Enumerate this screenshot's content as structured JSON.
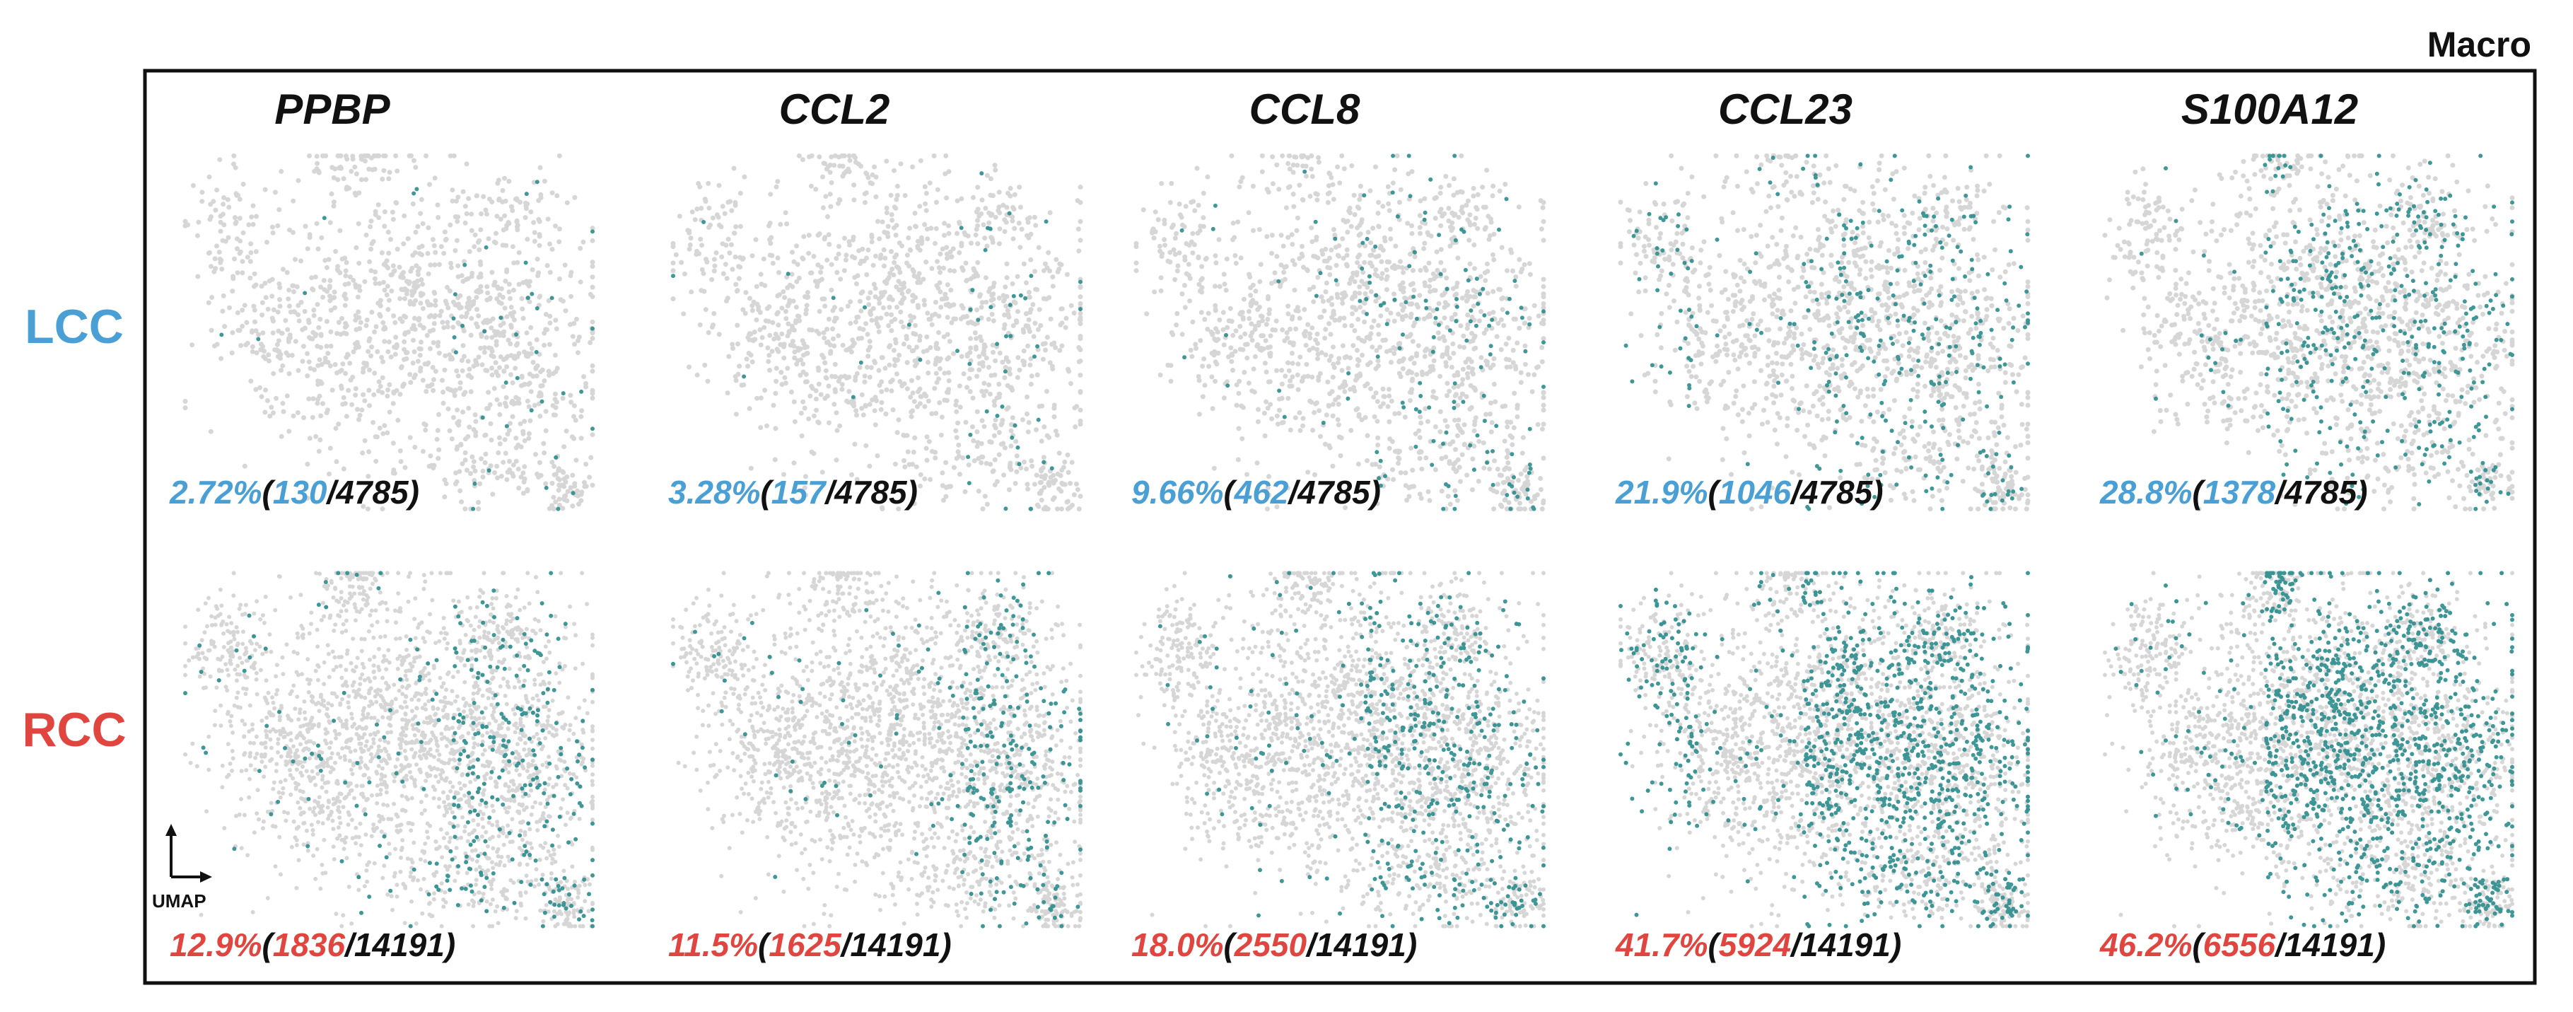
{
  "figure": {
    "corner_label": "Macro",
    "axis_key_label": "UMAP"
  },
  "colors": {
    "lcc": "#4a9fd4",
    "rcc": "#e0463f",
    "background_cell": "#d6d6d6",
    "expressing_cell": "#2a8c8c",
    "text": "#111111"
  },
  "chart_data": {
    "type": "scatter",
    "subtype": "UMAP feature plot grid",
    "genes": [
      "PPBP",
      "CCL2",
      "CCL8",
      "CCL23",
      "S100A12"
    ],
    "groups": [
      {
        "name": "LCC",
        "stats": [
          {
            "pct": "2.72%",
            "positive": "130",
            "total": "4785",
            "fraction": 0.0272
          },
          {
            "pct": "3.28%",
            "positive": "157",
            "total": "4785",
            "fraction": 0.0328
          },
          {
            "pct": "9.66%",
            "positive": "462",
            "total": "4785",
            "fraction": 0.0966
          },
          {
            "pct": "21.9%",
            "positive": "1046",
            "total": "4785",
            "fraction": 0.219
          },
          {
            "pct": "28.8%",
            "positive": "1378",
            "total": "4785",
            "fraction": 0.288
          }
        ]
      },
      {
        "name": "RCC",
        "stats": [
          {
            "pct": "12.9%",
            "positive": "1836",
            "total": "14191",
            "fraction": 0.129
          },
          {
            "pct": "11.5%",
            "positive": "1625",
            "total": "14191",
            "fraction": 0.115
          },
          {
            "pct": "18.0%",
            "positive": "2550",
            "total": "14191",
            "fraction": 0.18
          },
          {
            "pct": "41.7%",
            "positive": "5924",
            "total": "14191",
            "fraction": 0.417
          },
          {
            "pct": "46.2%",
            "positive": "6556",
            "total": "14191",
            "fraction": 0.462
          }
        ]
      }
    ]
  }
}
